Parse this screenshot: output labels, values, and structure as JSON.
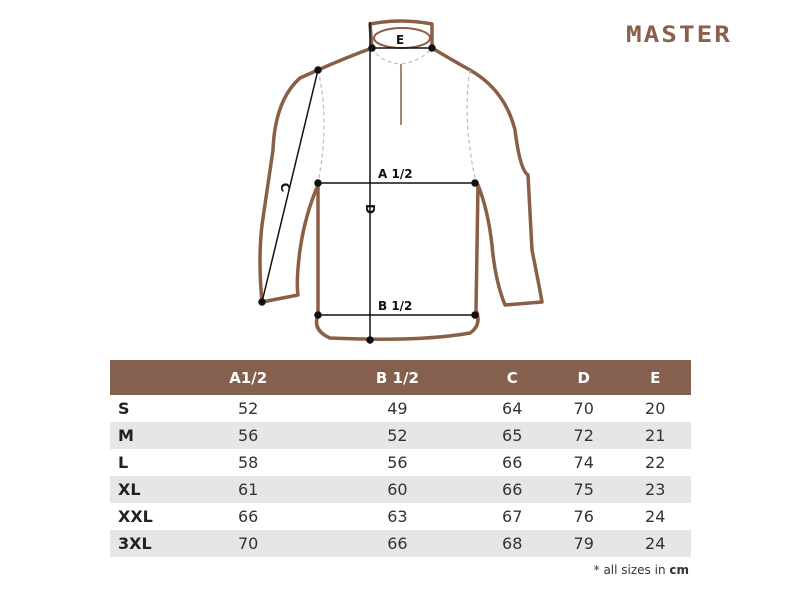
{
  "brand": "MASTER",
  "diagram": {
    "labels": {
      "a": "A 1/2",
      "b": "B 1/2",
      "c": "C",
      "d": "D",
      "e": "E"
    },
    "outline_color": "#8b5e46"
  },
  "table": {
    "header_color": "#86604e",
    "columns": [
      "",
      "A1/2",
      "B 1/2",
      "C",
      "D",
      "E"
    ],
    "rows": [
      [
        "S",
        "52",
        "49",
        "64",
        "70",
        "20"
      ],
      [
        "M",
        "56",
        "52",
        "65",
        "72",
        "21"
      ],
      [
        "L",
        "58",
        "56",
        "66",
        "74",
        "22"
      ],
      [
        "XL",
        "61",
        "60",
        "66",
        "75",
        "23"
      ],
      [
        "XXL",
        "66",
        "63",
        "67",
        "76",
        "24"
      ],
      [
        "3XL",
        "70",
        "66",
        "68",
        "79",
        "24"
      ]
    ]
  },
  "note": {
    "prefix": "* all sizes in ",
    "unit": "cm"
  }
}
